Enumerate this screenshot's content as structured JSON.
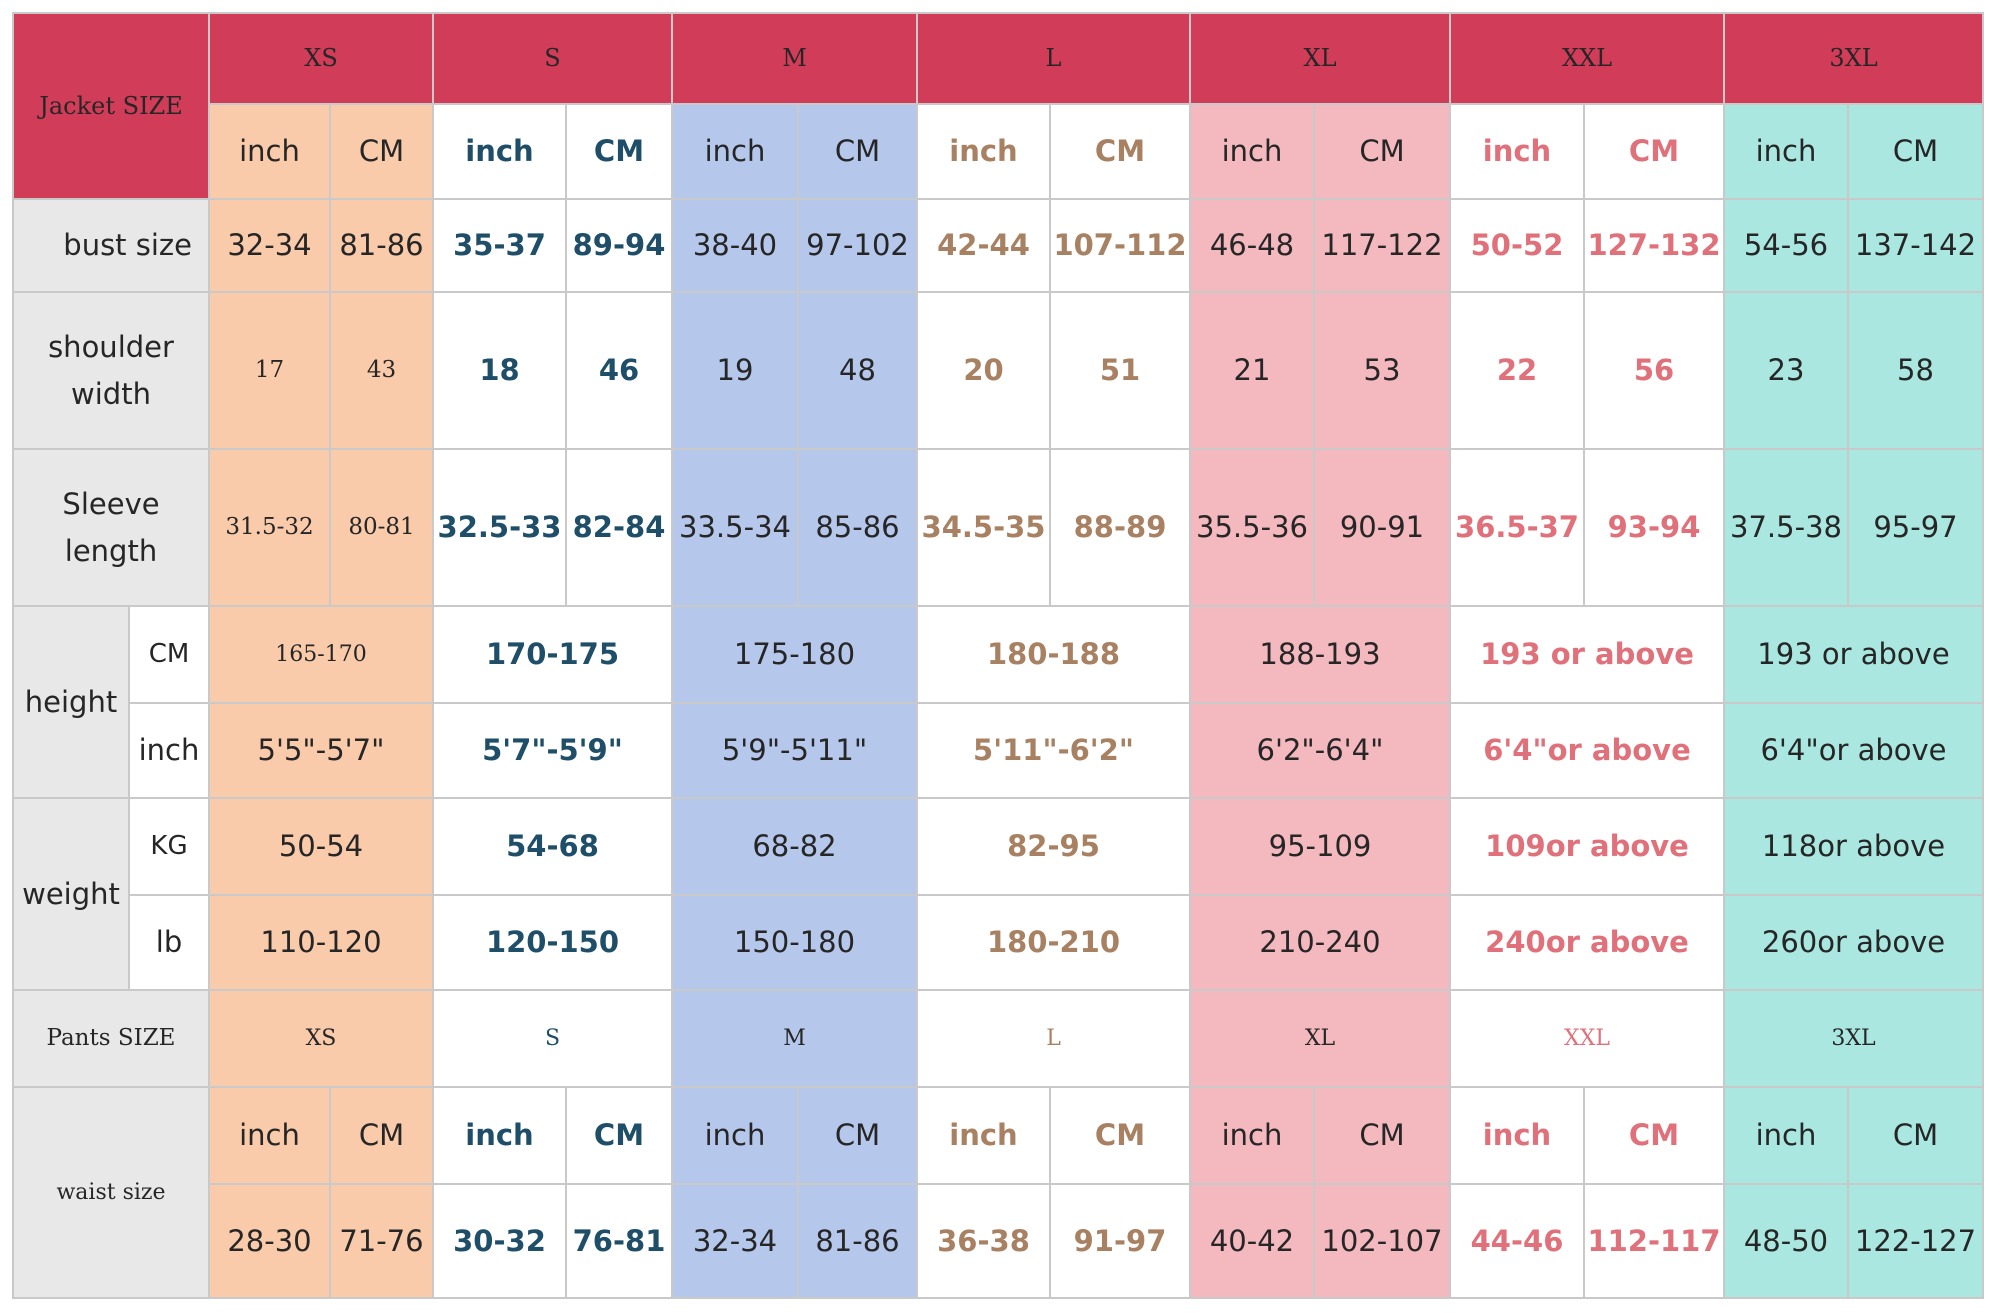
{
  "jacket_header": "Jacket SIZE",
  "pants_header": "Pants SIZE",
  "sizes": [
    "XS",
    "S",
    "M",
    "L",
    "XL",
    "XXL",
    "3XL"
  ],
  "colors": {
    "header_red": "#d13c58",
    "label_gray": "#e8e8e8",
    "xs_bg": "#f9cbaa",
    "s_bg": "#ffffff",
    "m_bg": "#b6c7ec",
    "l_bg": "#ffffff",
    "xl_bg": "#f4b8bf",
    "xxl_bg": "#ffffff",
    "x3_bg": "#a9e7e0",
    "s_text": "#1f4e69",
    "l_text": "#a88062",
    "xxl_text": "#e0707a"
  },
  "unit_labels": {
    "inch": "inch",
    "cm": "CM"
  },
  "labels": {
    "bust": "bust size",
    "shoulder": "shoulder width",
    "sleeve": "Sleeve length",
    "height": "height",
    "height_cm": "CM",
    "height_inch": "inch",
    "weight": "weight",
    "weight_kg": "KG",
    "weight_lb": "lb",
    "waist": "waist size"
  },
  "bust": [
    [
      "32-34",
      "81-86"
    ],
    [
      "35-37",
      "89-94"
    ],
    [
      "38-40",
      "97-102"
    ],
    [
      "42-44",
      "107-112"
    ],
    [
      "46-48",
      "117-122"
    ],
    [
      "50-52",
      "127-132"
    ],
    [
      "54-56",
      "137-142"
    ]
  ],
  "shoulder": [
    [
      "17",
      "43"
    ],
    [
      "18",
      "46"
    ],
    [
      "19",
      "48"
    ],
    [
      "20",
      "51"
    ],
    [
      "21",
      "53"
    ],
    [
      "22",
      "56"
    ],
    [
      "23",
      "58"
    ]
  ],
  "sleeve": [
    [
      "31.5-32",
      "80-81"
    ],
    [
      "32.5-33",
      "82-84"
    ],
    [
      "33.5-34",
      "85-86"
    ],
    [
      "34.5-35",
      "88-89"
    ],
    [
      "35.5-36",
      "90-91"
    ],
    [
      "36.5-37",
      "93-94"
    ],
    [
      "37.5-38",
      "95-97"
    ]
  ],
  "height_cm": [
    "165-170",
    "170-175",
    "175-180",
    "180-188",
    "188-193",
    "193 or above",
    "193 or above"
  ],
  "height_inch": [
    "5'5\"-5'7\"",
    "5'7\"-5'9\"",
    "5'9\"-5'11\"",
    "5'11\"-6'2\"",
    "6'2\"-6'4\"",
    "6'4\"or above",
    "6'4\"or above"
  ],
  "weight_kg": [
    "50-54",
    "54-68",
    "68-82",
    "82-95",
    "95-109",
    "109or above",
    "118or above"
  ],
  "weight_lb": [
    "110-120",
    "120-150",
    "150-180",
    "180-210",
    "210-240",
    "240or above",
    "260or above"
  ],
  "pants_sizes": [
    "XS",
    "S",
    "M",
    "L",
    "XL",
    "XXL",
    "3XL"
  ],
  "waist": [
    [
      "28-30",
      "71-76"
    ],
    [
      "30-32",
      "76-81"
    ],
    [
      "32-34",
      "81-86"
    ],
    [
      "36-38",
      "91-97"
    ],
    [
      "40-42",
      "102-107"
    ],
    [
      "44-46",
      "112-117"
    ],
    [
      "48-50",
      "122-127"
    ]
  ]
}
